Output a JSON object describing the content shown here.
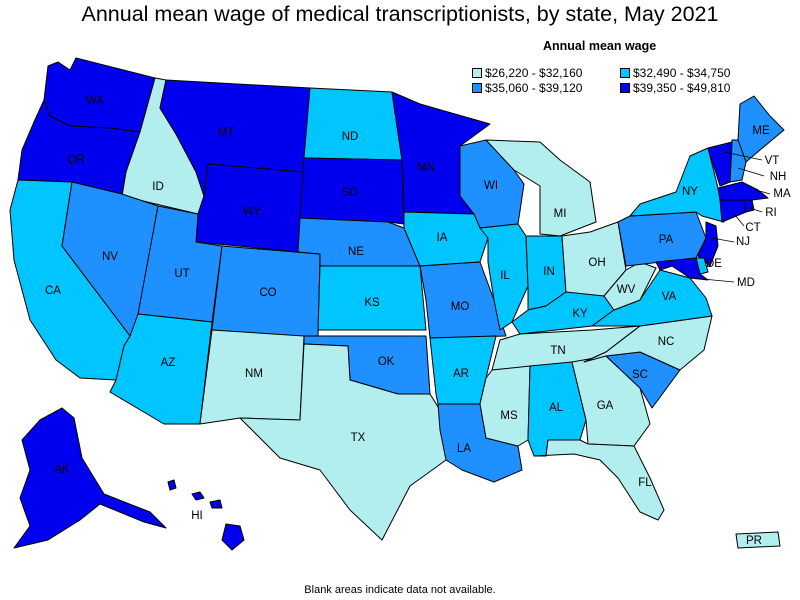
{
  "title": "Annual mean wage of medical transcriptionists, by state, May 2021",
  "legend": {
    "title": "Annual mean wage",
    "items": [
      {
        "label": "$26,220 - $32,160",
        "color": "#b2eeee"
      },
      {
        "label": "$32,490 - $34,750",
        "color": "#00c5ff"
      },
      {
        "label": "$35,060 - $39,120",
        "color": "#1e90ff"
      },
      {
        "label": "$39,350 - $49,810",
        "color": "#0000ee"
      }
    ]
  },
  "footnote": "Blank areas indicate data not available.",
  "states": {
    "WA": {
      "label": "WA",
      "bin": 3
    },
    "OR": {
      "label": "OR",
      "bin": 3
    },
    "CA": {
      "label": "CA",
      "bin": 1
    },
    "ID": {
      "label": "ID",
      "bin": 0
    },
    "NV": {
      "label": "NV",
      "bin": 2
    },
    "MT": {
      "label": "MT",
      "bin": 3
    },
    "WY": {
      "label": "WY",
      "bin": 3
    },
    "UT": {
      "label": "UT",
      "bin": 2
    },
    "AZ": {
      "label": "AZ",
      "bin": 1
    },
    "CO": {
      "label": "CO",
      "bin": 2
    },
    "NM": {
      "label": "NM",
      "bin": 0
    },
    "ND": {
      "label": "ND",
      "bin": 1
    },
    "SD": {
      "label": "SD",
      "bin": 3
    },
    "NE": {
      "label": "NE",
      "bin": 2
    },
    "KS": {
      "label": "KS",
      "bin": 1
    },
    "OK": {
      "label": "OK",
      "bin": 2
    },
    "TX": {
      "label": "TX",
      "bin": 0
    },
    "MN": {
      "label": "MN",
      "bin": 3
    },
    "IA": {
      "label": "IA",
      "bin": 1
    },
    "MO": {
      "label": "MO",
      "bin": 2
    },
    "AR": {
      "label": "AR",
      "bin": 1
    },
    "LA": {
      "label": "LA",
      "bin": 2
    },
    "WI": {
      "label": "WI",
      "bin": 2
    },
    "IL": {
      "label": "IL",
      "bin": 1
    },
    "MI": {
      "label": "MI",
      "bin": 0
    },
    "IN": {
      "label": "IN",
      "bin": 1
    },
    "OH": {
      "label": "OH",
      "bin": 0
    },
    "KY": {
      "label": "KY",
      "bin": 1
    },
    "TN": {
      "label": "TN",
      "bin": 0
    },
    "MS": {
      "label": "MS",
      "bin": 0
    },
    "AL": {
      "label": "AL",
      "bin": 1
    },
    "GA": {
      "label": "GA",
      "bin": 0
    },
    "FL": {
      "label": "FL",
      "bin": 0
    },
    "SC": {
      "label": "SC",
      "bin": 2
    },
    "NC": {
      "label": "NC",
      "bin": 0
    },
    "VA": {
      "label": "VA",
      "bin": 1
    },
    "WV": {
      "label": "WV",
      "bin": 0
    },
    "PA": {
      "label": "PA",
      "bin": 2
    },
    "NY": {
      "label": "NY",
      "bin": 1
    },
    "ME": {
      "label": "ME",
      "bin": 2
    },
    "VT": {
      "label": "VT",
      "bin": 3
    },
    "NH": {
      "label": "NH",
      "bin": 2
    },
    "MA": {
      "label": "MA",
      "bin": 3
    },
    "RI": {
      "label": "RI",
      "bin": 3
    },
    "CT": {
      "label": "CT",
      "bin": 3
    },
    "NJ": {
      "label": "NJ",
      "bin": 3
    },
    "DE": {
      "label": "DE",
      "bin": 1
    },
    "MD": {
      "label": "MD",
      "bin": 3
    },
    "AK": {
      "label": "AK",
      "bin": 3
    },
    "HI": {
      "label": "HI",
      "bin": 3
    },
    "PR": {
      "label": "PR",
      "bin": 0
    }
  }
}
